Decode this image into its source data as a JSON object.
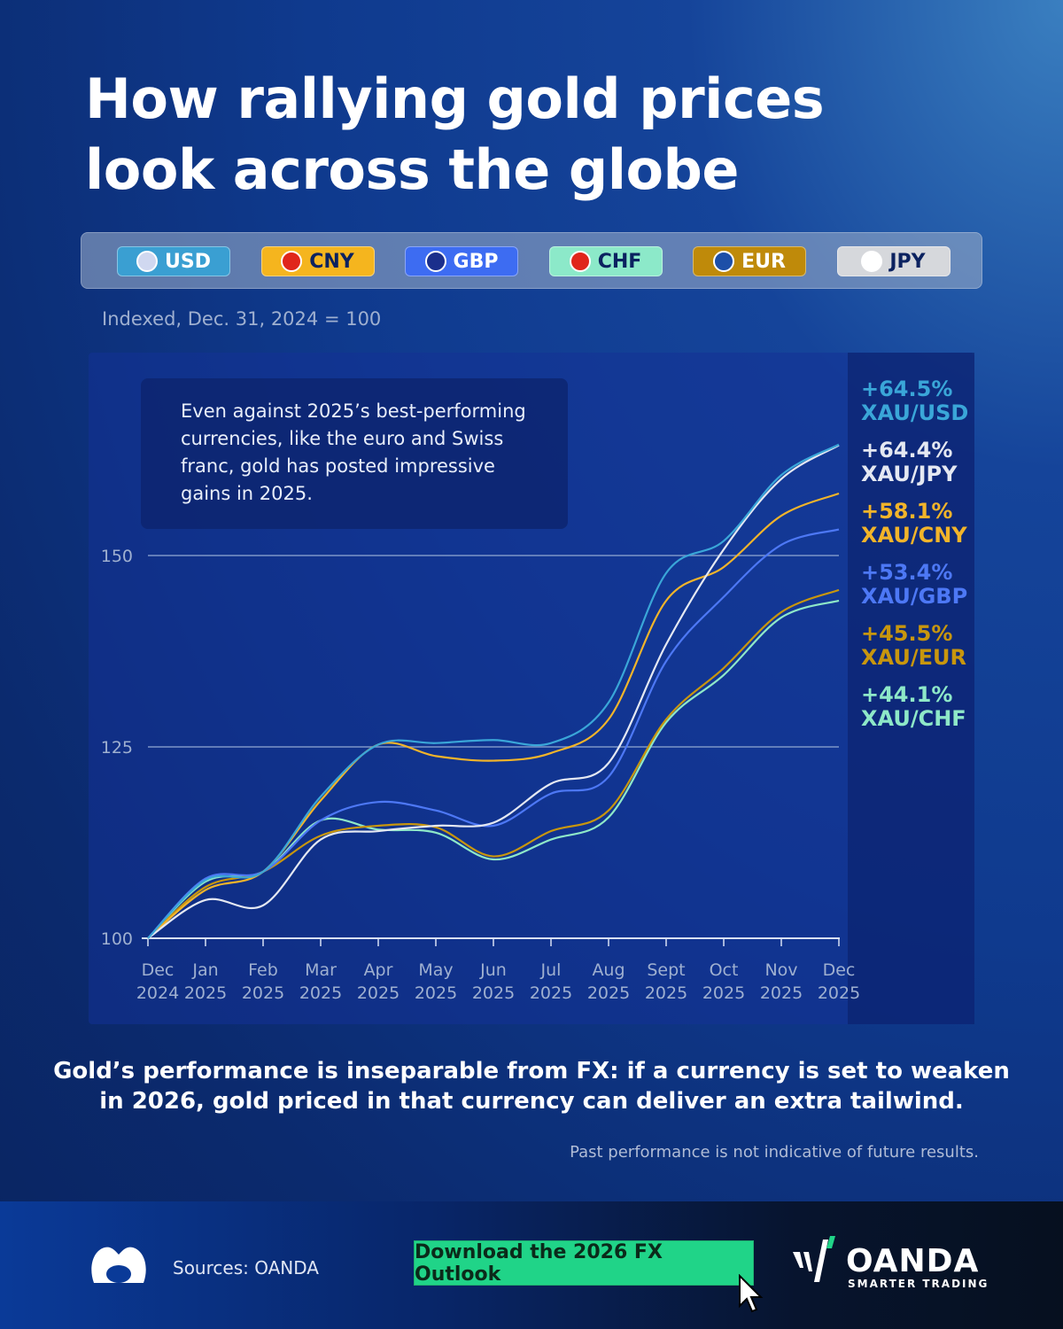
{
  "title_line1": "How rallying gold prices",
  "title_line2": "look across the globe",
  "legend": [
    {
      "code": "USD",
      "bg": "#3a9fd2",
      "fg": "#ffffff",
      "flag": "#d0d8f0"
    },
    {
      "code": "CNY",
      "bg": "#f5b51e",
      "fg": "#0b2260",
      "flag": "#e0261b"
    },
    {
      "code": "GBP",
      "bg": "#3d6cf2",
      "fg": "#ffffff",
      "flag": "#1b2f8c"
    },
    {
      "code": "CHF",
      "bg": "#8ce9c9",
      "fg": "#0b2260",
      "flag": "#e0261b"
    },
    {
      "code": "EUR",
      "bg": "#bf8a0a",
      "fg": "#ffffff",
      "flag": "#1d4fa8"
    },
    {
      "code": "JPY",
      "bg": "#d6d8dc",
      "fg": "#0b2260",
      "flag": "#ffffff"
    }
  ],
  "subtitle": "Indexed, Dec. 31, 2024 = 100",
  "note": "Even against 2025’s best-performing currencies, like the euro and Swiss franc, gold has posted impressive gains in 2025.",
  "chart_data": {
    "type": "line",
    "categories": [
      [
        "Dec",
        "2024"
      ],
      [
        "Jan",
        "2025"
      ],
      [
        "Feb",
        "2025"
      ],
      [
        "Mar",
        "2025"
      ],
      [
        "Apr",
        "2025"
      ],
      [
        "May",
        "2025"
      ],
      [
        "Jun",
        "2025"
      ],
      [
        "Jul",
        "2025"
      ],
      [
        "Aug",
        "2025"
      ],
      [
        "Sept",
        "2025"
      ],
      [
        "Oct",
        "2025"
      ],
      [
        "Nov",
        "2025"
      ],
      [
        "Dec",
        "2025"
      ]
    ],
    "yticks": [
      100,
      125,
      150
    ],
    "ylim": [
      100,
      168
    ],
    "grid": true,
    "series": [
      {
        "name": "XAU/USD",
        "change": "+64.5%",
        "color": "#3aa6d8",
        "values": [
          100,
          107.6,
          108.7,
          118.5,
          125.3,
          125.5,
          125.9,
          125.5,
          130.8,
          147.7,
          151.9,
          160.5,
          164.5
        ]
      },
      {
        "name": "XAU/JPY",
        "change": "+64.4%",
        "color": "#e4e8f2",
        "values": [
          100,
          105,
          104.3,
          112.9,
          114,
          114.7,
          115.1,
          120.2,
          122.9,
          138.4,
          150.8,
          160,
          164.4
        ]
      },
      {
        "name": "XAU/CNY",
        "change": "+58.1%",
        "color": "#f2b42a",
        "values": [
          100,
          106.3,
          108.7,
          118,
          125.3,
          123.8,
          123.2,
          124.2,
          128.6,
          144.1,
          148.5,
          155.2,
          158.1
        ]
      },
      {
        "name": "XAU/GBP",
        "change": "+53.4%",
        "color": "#4d78f5",
        "values": [
          100,
          107.8,
          108.7,
          115.4,
          117.8,
          116.7,
          114.7,
          118.9,
          121.1,
          136.2,
          144.6,
          151.4,
          153.4
        ]
      },
      {
        "name": "XAU/EUR",
        "change": "+45.5%",
        "color": "#c8960e",
        "values": [
          100,
          106.7,
          108.7,
          113.4,
          114.7,
          114.5,
          110.7,
          114,
          116.7,
          128.6,
          135.3,
          142.6,
          145.5
        ]
      },
      {
        "name": "XAU/CHF",
        "change": "+44.1%",
        "color": "#8ee8c8",
        "values": [
          100,
          107.4,
          108.7,
          115.4,
          114.2,
          113.8,
          110.3,
          112.9,
          115.8,
          128.2,
          134.4,
          141.9,
          144.1
        ]
      }
    ]
  },
  "caption_line1": "Gold’s performance is inseparable from FX: if a currency is set to weaken",
  "caption_line2": "in 2026, gold priced in that currency can deliver an extra tailwind.",
  "disclaimer": "Past performance is not indicative of future results.",
  "footer": {
    "sources": "Sources: OANDA",
    "cta": "Download the 2026 FX Outlook",
    "brand": "OANDA",
    "tagline": "SMARTER TRADING"
  }
}
